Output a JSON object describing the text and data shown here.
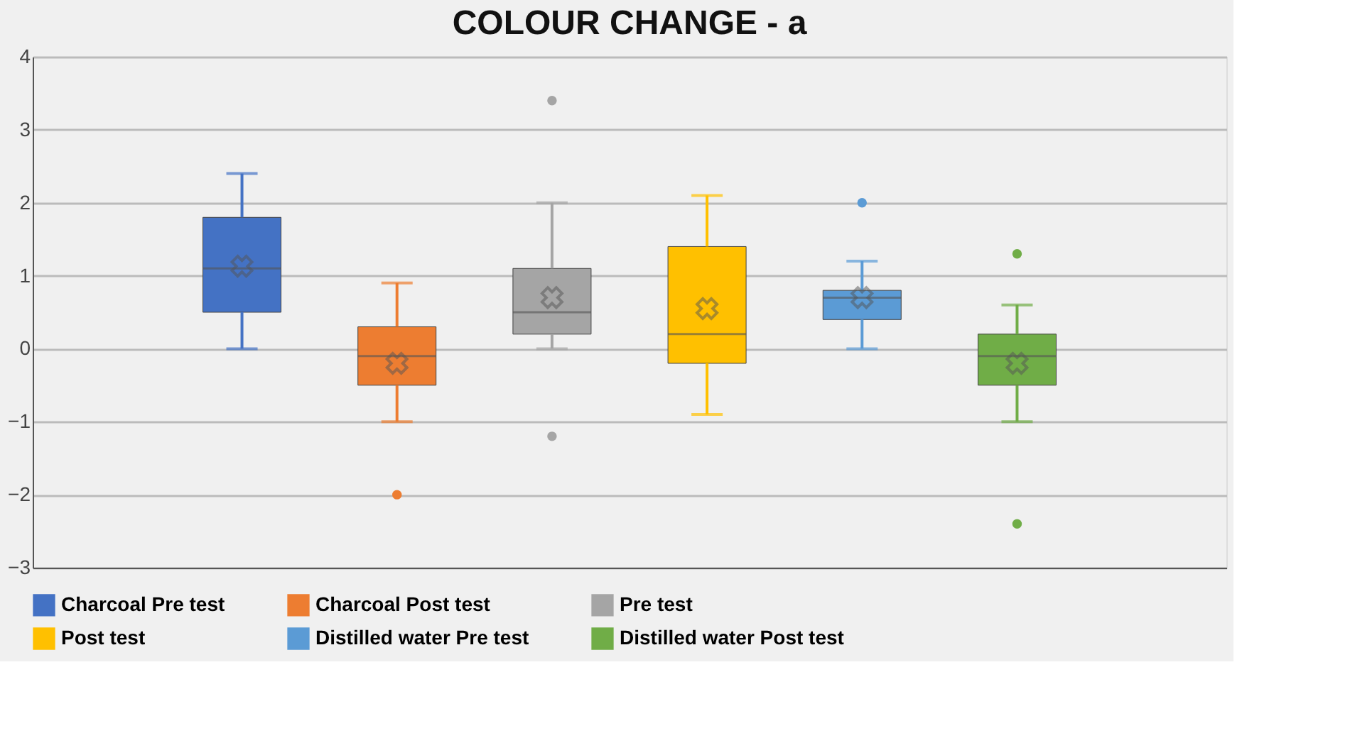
{
  "chart_data": {
    "type": "box",
    "title": "COLOUR CHANGE - a",
    "categories": [
      null
    ],
    "series": [
      {
        "name": "Charcoal Pre test",
        "color": "#4472c4",
        "boxes": [
          {
            "low": 0,
            "q1": 0.5,
            "median": 1.1,
            "q3": 1.8,
            "high": 2.4,
            "mean": 1.13
          }
        ]
      },
      {
        "name": "Charcoal Post test",
        "color": "#ed7d31",
        "boxes": [
          {
            "low": -1,
            "q1": -0.5,
            "median": -0.1,
            "q3": 0.3,
            "high": 0.9,
            "mean": -0.2,
            "outliers": [
              -2
            ]
          }
        ]
      },
      {
        "name": "Pre test",
        "color": "#a5a5a5",
        "boxes": [
          {
            "low": 0,
            "q1": 0.2,
            "median": 0.5,
            "q3": 1.1,
            "high": 2,
            "mean": 0.7,
            "outliers": [
              3.4,
              -1.2
            ]
          }
        ]
      },
      {
        "name": "Post test",
        "color": "#ffc000",
        "boxes": [
          {
            "low": -0.9,
            "q1": -0.2,
            "median": 0.2,
            "q3": 1.4,
            "high": 2.1,
            "mean": 0.55
          }
        ]
      },
      {
        "name": "Distilled water Pre test",
        "color": "#5b9bd5",
        "boxes": [
          {
            "low": 0,
            "q1": 0.4,
            "median": 0.7,
            "q3": 0.8,
            "high": 1.2,
            "mean": 0.7,
            "outliers": [
              2
            ]
          }
        ]
      },
      {
        "name": "Distilled water Post test",
        "color": "#70ad47",
        "boxes": [
          {
            "low": -1,
            "q1": -0.5,
            "median": -0.1,
            "q3": 0.2,
            "high": 0.6,
            "mean": -0.2,
            "outliers": [
              1.3,
              -2.4
            ]
          }
        ]
      }
    ],
    "ylim": [
      -3,
      4
    ],
    "yticks": [
      -3,
      -2,
      -1,
      0,
      1,
      2,
      3,
      4
    ],
    "grid": "y",
    "legend": "bottom",
    "marker": "cross",
    "tick_labels": "y"
  }
}
